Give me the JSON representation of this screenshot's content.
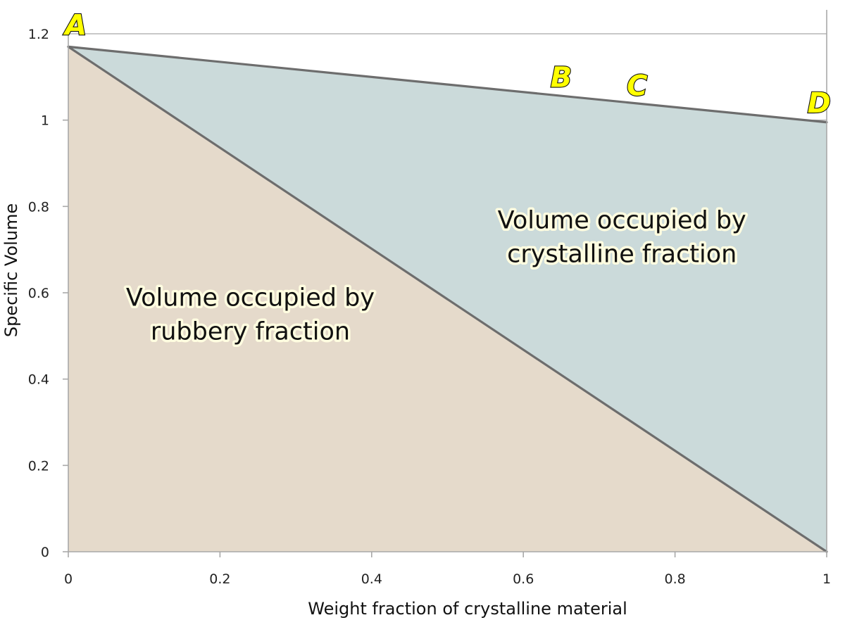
{
  "chart_data": {
    "type": "area",
    "xlabel": "Weight fraction of crystalline material",
    "ylabel": "Specific Volume",
    "xlim": [
      0,
      1
    ],
    "ylim": [
      0,
      1.2
    ],
    "x_ticks": [
      0,
      0.2,
      0.4,
      0.6,
      0.8,
      1
    ],
    "x_tick_labels": [
      "0",
      "0.2",
      "0.4",
      "0.6",
      "0.8",
      "1"
    ],
    "y_ticks": [
      0,
      0.2,
      0.4,
      0.6,
      0.8,
      1,
      1.2
    ],
    "y_tick_labels": [
      "0",
      "0.2",
      "0.4",
      "0.6",
      "0.8",
      "1",
      "1.2"
    ],
    "grid": "horizontal",
    "series": [
      {
        "x": [
          0,
          1
        ],
        "values": [
          1.17,
          0.0
        ],
        "fill": "#e5dacb",
        "line": "#6d6d6d"
      },
      {
        "x": [
          0,
          1
        ],
        "values": [
          1.17,
          0.995
        ],
        "fill": "#cbdada",
        "line": "#6d6d6d"
      }
    ],
    "region_labels": [
      {
        "lines": [
          "Volume occupied by",
          "rubbery fraction"
        ],
        "x": 0.24,
        "y": 0.55
      },
      {
        "lines": [
          "Volume occupied by",
          "crystalline fraction"
        ],
        "x": 0.73,
        "y": 0.73
      }
    ],
    "point_labels": [
      {
        "text": "A",
        "x": 0.01,
        "y": 1.22
      },
      {
        "text": "B",
        "x": 0.65,
        "y": 1.1
      },
      {
        "text": "C",
        "x": 0.75,
        "y": 1.08
      },
      {
        "text": "D",
        "x": 0.99,
        "y": 1.04
      }
    ],
    "colors": {
      "rubbery_fill": "#e5dacb",
      "crystalline_fill": "#cbdada",
      "line": "#6d6d6d",
      "grid": "#a8a8a8",
      "label_fill": "#ffff00"
    }
  }
}
